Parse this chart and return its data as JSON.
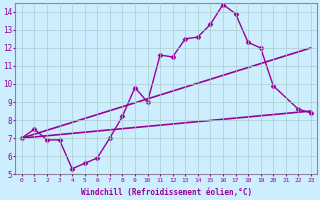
{
  "title": "",
  "xlabel": "Windchill (Refroidissement éolien,°C)",
  "ylabel": "",
  "bg_color": "#cceeff",
  "line_color": "#990099",
  "grid_color": "#aacccc",
  "xlim": [
    -0.5,
    23.5
  ],
  "ylim": [
    5,
    14.5
  ],
  "yticks": [
    5,
    6,
    7,
    8,
    9,
    10,
    11,
    12,
    13,
    14
  ],
  "xticks": [
    0,
    1,
    2,
    3,
    4,
    5,
    6,
    7,
    8,
    9,
    10,
    11,
    12,
    13,
    14,
    15,
    16,
    17,
    18,
    19,
    20,
    21,
    22,
    23
  ],
  "series": [
    {
      "x": [
        0,
        1,
        2,
        3,
        4,
        5,
        6,
        7,
        8,
        9,
        10,
        11,
        12,
        13,
        14,
        15,
        16,
        17,
        18,
        19,
        20,
        22,
        23
      ],
      "y": [
        7.0,
        7.5,
        6.9,
        6.9,
        5.3,
        5.6,
        5.9,
        7.0,
        8.2,
        9.8,
        9.0,
        11.6,
        11.5,
        12.5,
        12.6,
        13.3,
        14.4,
        13.9,
        12.3,
        12.0,
        9.9,
        8.6,
        8.4
      ],
      "marker": "D",
      "markersize": 2.5,
      "linewidth": 1.0
    },
    {
      "x": [
        0,
        23
      ],
      "y": [
        7.0,
        12.0
      ],
      "marker": null,
      "markersize": 0,
      "linewidth": 1.2
    },
    {
      "x": [
        0,
        23
      ],
      "y": [
        7.0,
        8.5
      ],
      "marker": null,
      "markersize": 0,
      "linewidth": 1.2
    }
  ]
}
